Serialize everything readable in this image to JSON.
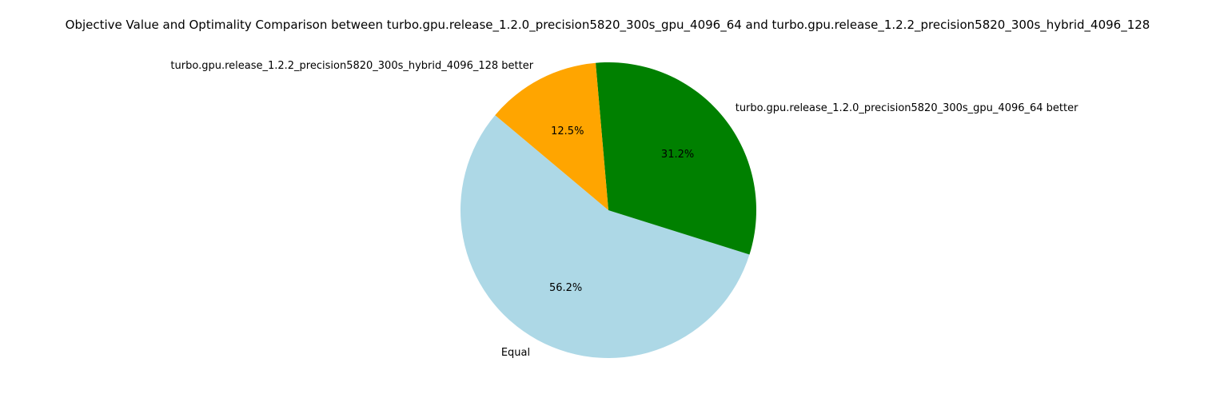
{
  "chart_data": {
    "type": "pie",
    "title": "Objective Value and Optimality Comparison between turbo.gpu.release_1.2.0_precision5820_300s_gpu_4096_64 and turbo.gpu.release_1.2.2_precision5820_300s_hybrid_4096_128",
    "labels": [
      "Equal",
      "turbo.gpu.release_1.2.0_precision5820_300s_gpu_4096_64 better",
      "turbo.gpu.release_1.2.2_precision5820_300s_hybrid_4096_128 better"
    ],
    "values": [
      56.2,
      31.2,
      12.5
    ],
    "percent_labels": [
      "56.2%",
      "31.2%",
      "12.5%"
    ],
    "colors": [
      "#add8e6",
      "#008000",
      "#ffa500"
    ],
    "start_angle_deg": 140,
    "counterclock": true,
    "legend": "none"
  }
}
